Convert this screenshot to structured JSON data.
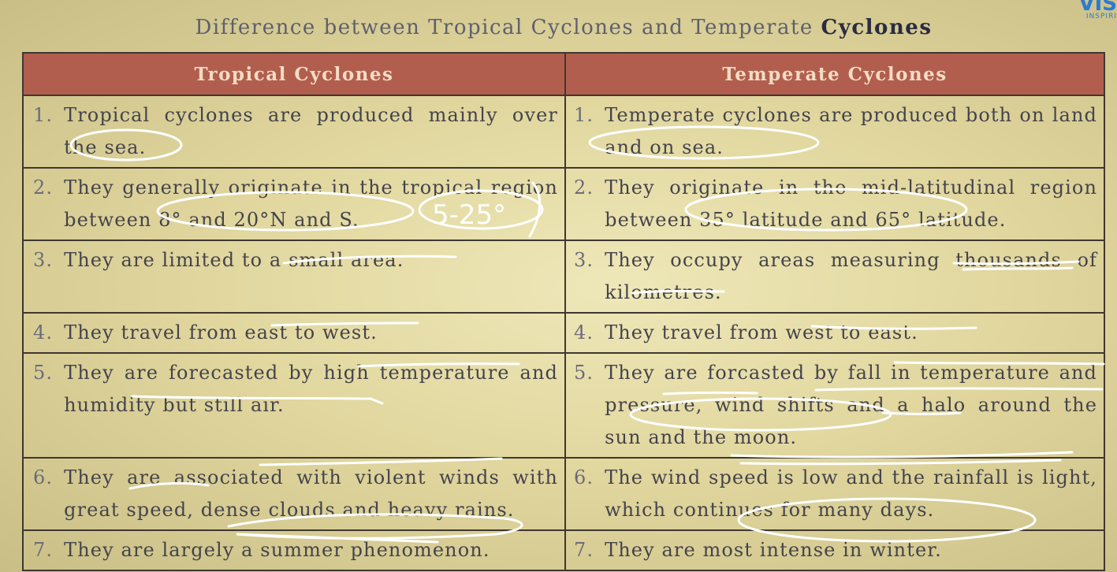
{
  "title": {
    "part1": "Difference between Tropical Cyclones and Temperate ",
    "part2": "Cyclones"
  },
  "brand": {
    "big": "VIS",
    "small": "INSPIRI"
  },
  "table": {
    "headers": [
      "Tropical Cyclones",
      "Temperate Cyclones"
    ],
    "rows": [
      {
        "tropical": {
          "num": "1.",
          "text": "Tropical cyclones are produced mainly over the sea."
        },
        "temperate": {
          "num": "1.",
          "text": "Temperate cyclones are produced both on land and on sea."
        }
      },
      {
        "tropical": {
          "num": "2.",
          "text": "They generally originate in the tropical region between 8° and 20°N and S."
        },
        "temperate": {
          "num": "2.",
          "text": "They originate in the mid-latitudinal region between 35° latitude and 65° latitude."
        }
      },
      {
        "tropical": {
          "num": "3.",
          "text": "They are limited to a small area."
        },
        "temperate": {
          "num": "3.",
          "text": "They occupy areas measuring thousands of kilometres."
        }
      },
      {
        "tropical": {
          "num": "4.",
          "text": "They travel from east to west."
        },
        "temperate": {
          "num": "4.",
          "text": "They travel from west to east."
        }
      },
      {
        "tropical": {
          "num": "5.",
          "text": "They are forecasted by high temperature and humidity but still air."
        },
        "temperate": {
          "num": "5.",
          "text": "They are forcasted by fall in temperature and pressure, wind shifts and a halo around the sun and the moon."
        }
      },
      {
        "tropical": {
          "num": "6.",
          "text": "They are associated with violent winds with great speed, dense clouds and heavy rains."
        },
        "temperate": {
          "num": "6.",
          "text": "The wind speed is low and the rainfall is light, which continues for many days."
        }
      },
      {
        "tropical": {
          "num": "7.",
          "text": "They are largely a summer phenomenon."
        },
        "temperate": {
          "num": "7.",
          "text": "They are most intense in winter."
        }
      }
    ]
  },
  "annotation": {
    "handwritten_note": "5-25°"
  },
  "colors": {
    "header_bg": "#b25e4e",
    "paper": "#e4dba6",
    "ink": "#ffffff",
    "brand": "#2b7bd3"
  }
}
